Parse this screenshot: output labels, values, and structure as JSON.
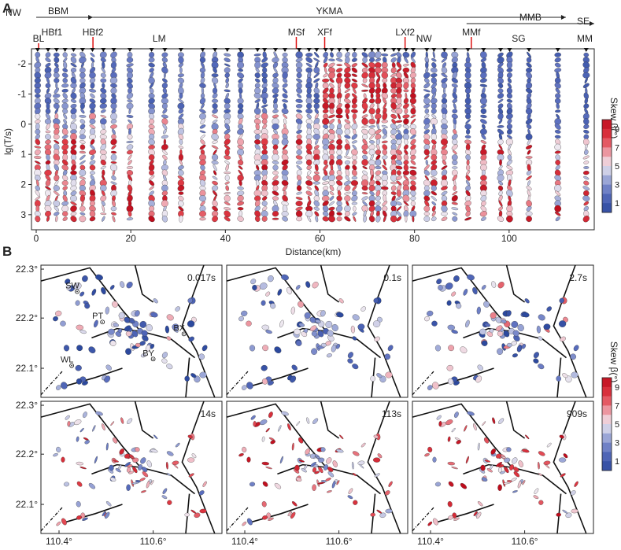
{
  "figure": {
    "panels": [
      "A",
      "B"
    ]
  },
  "chart_data": [
    {
      "type": "scatter",
      "panel": "A",
      "description_label": "Phase tensor ellipse pseudosection",
      "xlabel": "Distance(km)",
      "ylabel": "lg(T/s)",
      "xlim": [
        -1,
        118
      ],
      "ylim": [
        -2.5,
        3.5
      ],
      "x_ticks": [
        0,
        20,
        40,
        60,
        80,
        100
      ],
      "y_ticks": [
        -2,
        -1,
        0,
        1,
        2,
        3
      ],
      "direction_left": "NW",
      "direction_right": "SE",
      "tectonic_units": [
        {
          "name": "BBM",
          "from": 0,
          "to": 12
        },
        {
          "name": "YKMA",
          "from": 12,
          "to": 112
        },
        {
          "name": "MMB",
          "from": 91,
          "to": 118
        }
      ],
      "faults": [
        {
          "name": "BL",
          "x": 0.5,
          "red_line": true
        },
        {
          "name": "HBf1",
          "x": 1,
          "red_line": false
        },
        {
          "name": "HBf2",
          "x": 12,
          "red_line": true
        },
        {
          "name": "LM",
          "x": 26,
          "red_line": false
        },
        {
          "name": "MSf",
          "x": 55,
          "red_line": true
        },
        {
          "name": "XFf",
          "x": 61,
          "red_line": true
        },
        {
          "name": "LXf2",
          "x": 78,
          "red_line": true
        },
        {
          "name": "NW",
          "x": 82,
          "red_line": false
        },
        {
          "name": "MMf",
          "x": 92,
          "red_line": true
        },
        {
          "name": "SG",
          "x": 102,
          "red_line": false
        },
        {
          "name": "MM",
          "x": 116,
          "red_line": false
        }
      ],
      "station_x": [
        0.3,
        2.5,
        4.3,
        6.1,
        7.9,
        9.8,
        11.9,
        14.2,
        16.4,
        19.8,
        24.4,
        27.2,
        30.6,
        35.2,
        37.8,
        40.4,
        43.2,
        46.8,
        48.3,
        50.6,
        52.6,
        55.6,
        57.7,
        59.3,
        61.2,
        62.5,
        64.1,
        65.8,
        67.3,
        69.5,
        71,
        72.3,
        73.7,
        75.6,
        76.7,
        78.2,
        79.7,
        82.6,
        84.1,
        86.3,
        88.5,
        91.3,
        94.6,
        98.2,
        100.1,
        104.2,
        110.3,
        116.3
      ],
      "colorbar": {
        "title": "Skew β(°)",
        "ticks": [
          "1",
          "3",
          "5",
          "7",
          "9"
        ],
        "min": 0,
        "max": 10
      }
    },
    {
      "type": "scatter",
      "panel": "B",
      "description_label": "Phase tensor maps at six periods",
      "x_ticks": [
        "110.4°",
        "110.6°"
      ],
      "y_ticks": [
        "22.1°",
        "22.2°",
        "22.3°"
      ],
      "maps": [
        {
          "period": "0.017s",
          "skew_level": 2.5
        },
        {
          "period": "0.1s",
          "skew_level": 2.8
        },
        {
          "period": "2.7s",
          "skew_level": 3.5
        },
        {
          "period": "14s",
          "skew_level": 5.5
        },
        {
          "period": "113s",
          "skew_level": 6
        },
        {
          "period": "909s",
          "skew_level": 6.5
        }
      ],
      "towns": [
        {
          "name": "SW"
        },
        {
          "name": "PT"
        },
        {
          "name": "BX"
        },
        {
          "name": "WL"
        },
        {
          "name": "BY"
        }
      ],
      "colorbar": {
        "title": "Skew β(°)",
        "ticks": [
          "1",
          "3",
          "5",
          "7",
          "9"
        ],
        "min": 0,
        "max": 10
      }
    }
  ]
}
